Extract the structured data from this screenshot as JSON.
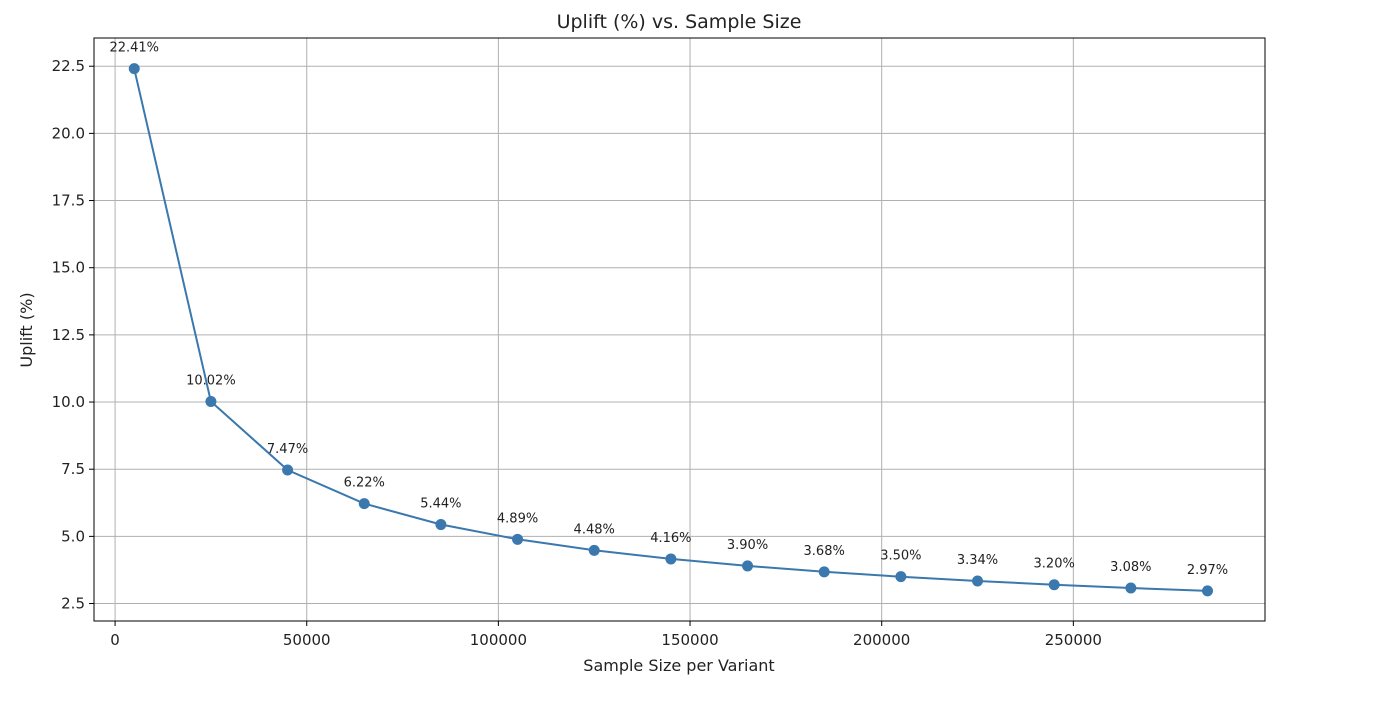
{
  "chart_data": {
    "type": "line",
    "title": "Uplift (%) vs. Sample Size",
    "xlabel": "Sample Size per Variant",
    "ylabel": "Uplift (%)",
    "xlim": [
      -5500,
      300000
    ],
    "ylim": [
      1.85,
      23.55
    ],
    "xticks": [
      0,
      50000,
      100000,
      150000,
      200000,
      250000
    ],
    "xtick_labels": [
      "0",
      "50000",
      "100000",
      "150000",
      "200000",
      "250000"
    ],
    "yticks": [
      2.5,
      5.0,
      7.5,
      10.0,
      12.5,
      15.0,
      17.5,
      20.0,
      22.5
    ],
    "ytick_labels": [
      "2.5",
      "5.0",
      "7.5",
      "10.0",
      "12.5",
      "15.0",
      "17.5",
      "20.0",
      "22.5"
    ],
    "grid": true,
    "series": [
      {
        "color": "#3a78ad",
        "marker": "circle",
        "x": [
          5000,
          25000,
          45000,
          65000,
          85000,
          105000,
          125000,
          145000,
          165000,
          185000,
          205000,
          225000,
          245000,
          265000,
          285000
        ],
        "values": [
          22.41,
          10.02,
          7.47,
          6.22,
          5.44,
          4.89,
          4.48,
          4.16,
          3.9,
          3.68,
          3.5,
          3.34,
          3.2,
          3.08,
          2.97
        ],
        "labels": [
          "22.41%",
          "10.02%",
          "7.47%",
          "6.22%",
          "5.44%",
          "4.89%",
          "4.48%",
          "4.16%",
          "3.90%",
          "3.68%",
          "3.50%",
          "3.34%",
          "3.20%",
          "3.08%",
          "2.97%"
        ]
      }
    ]
  }
}
